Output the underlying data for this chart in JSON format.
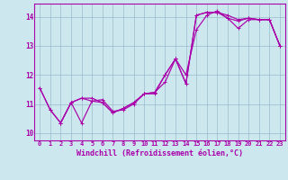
{
  "xlabel": "Windchill (Refroidissement éolien,°C)",
  "background_color": "#cce8ee",
  "line_color": "#aa00aa",
  "xlim": [
    -0.5,
    23.5
  ],
  "ylim": [
    9.75,
    14.45
  ],
  "xticks": [
    0,
    1,
    2,
    3,
    4,
    5,
    6,
    7,
    8,
    9,
    10,
    11,
    12,
    13,
    14,
    15,
    16,
    17,
    18,
    19,
    20,
    21,
    22,
    23
  ],
  "yticks": [
    10,
    11,
    12,
    13,
    14
  ],
  "series1_x": [
    0,
    1,
    2,
    3,
    4,
    5,
    6,
    7,
    8,
    9,
    10,
    11,
    12,
    13,
    14,
    15,
    16,
    17,
    18,
    19,
    20,
    21,
    22,
    23
  ],
  "series1_y": [
    11.55,
    10.8,
    10.35,
    11.05,
    10.35,
    11.1,
    11.15,
    10.75,
    10.8,
    11.0,
    11.35,
    11.35,
    12.0,
    12.55,
    11.7,
    14.05,
    14.15,
    14.15,
    13.95,
    13.85,
    13.95,
    13.9,
    13.9,
    13.0
  ],
  "series2_x": [
    0,
    1,
    2,
    3,
    4,
    5,
    6,
    7,
    8,
    9,
    10,
    11,
    12,
    13,
    14,
    15,
    16,
    17,
    18,
    19,
    20,
    21,
    22,
    23
  ],
  "series2_y": [
    11.55,
    10.8,
    10.35,
    11.05,
    11.2,
    11.2,
    11.05,
    10.7,
    10.85,
    11.05,
    11.35,
    11.4,
    11.75,
    12.55,
    11.7,
    14.05,
    14.15,
    14.15,
    14.05,
    13.9,
    13.95,
    13.9,
    13.9,
    13.0
  ],
  "series3_x": [
    2,
    3,
    4,
    5,
    6,
    7,
    8,
    9,
    10,
    11,
    12,
    13,
    14,
    15,
    16,
    17,
    18,
    19,
    20,
    21,
    22,
    23
  ],
  "series3_y": [
    10.35,
    11.05,
    11.2,
    11.1,
    11.05,
    10.7,
    10.85,
    11.05,
    11.35,
    11.4,
    12.0,
    12.55,
    12.0,
    13.55,
    14.05,
    14.2,
    13.95,
    13.6,
    13.9,
    13.9,
    13.9,
    13.0
  ],
  "grid_color": "#99bbcc",
  "tick_fontsize": 5.0,
  "xlabel_fontsize": 6.0,
  "linewidth": 0.85,
  "markersize": 2.8
}
